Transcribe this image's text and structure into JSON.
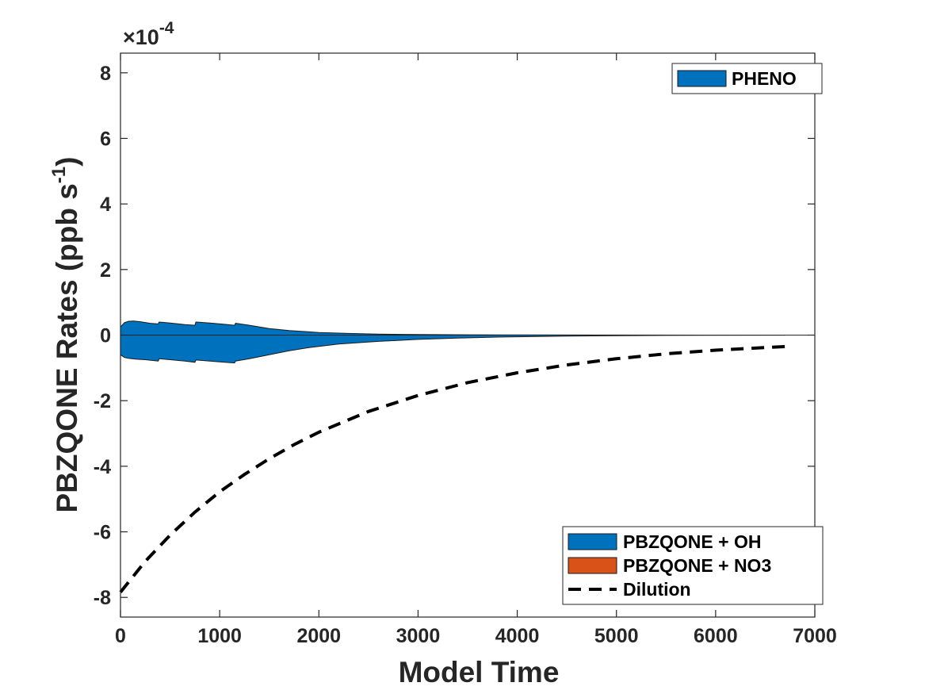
{
  "chart_data": {
    "type": "area",
    "xlabel": "Model Time",
    "ylabel": "PBZQONE Rates (ppb s",
    "ylabel_sup": "-1",
    "ylabel_close": ")",
    "y_multiplier": "×10",
    "y_multiplier_exp": "-4",
    "xlim": [
      0,
      7000
    ],
    "ylim": [
      -0.00086,
      0.00086
    ],
    "xticks": [
      0,
      1000,
      2000,
      3000,
      4000,
      5000,
      6000,
      7000
    ],
    "xtick_labels": [
      "0",
      "1000",
      "2000",
      "3000",
      "4000",
      "5000",
      "6000",
      "7000"
    ],
    "yticks": [
      -0.0008,
      -0.0006,
      -0.0004,
      -0.0002,
      0,
      0.0002,
      0.0004,
      0.0006,
      0.0008
    ],
    "ytick_labels": [
      "-8",
      "-6",
      "-4",
      "-2",
      "0",
      "2",
      "4",
      "6",
      "8"
    ],
    "grid": false,
    "colors": {
      "blue": "#0072BD",
      "orange": "#D95319",
      "black": "#000000"
    },
    "legend_production": {
      "placement": "top-right",
      "entries": [
        {
          "label": "PHENO",
          "color": "#0072BD"
        }
      ]
    },
    "legend_loss": {
      "placement": "bottom-right",
      "entries": [
        {
          "label": "PBZQONE + OH",
          "color": "#0072BD",
          "style": "patch"
        },
        {
          "label": "PBZQONE + NO3",
          "color": "#D95319",
          "style": "patch"
        },
        {
          "label": "Dilution",
          "color": "#000000",
          "style": "dashed"
        }
      ]
    },
    "series": [
      {
        "name": "PHENO",
        "kind": "area-positive",
        "color": "#0072BD",
        "x": [
          0,
          40,
          80,
          130,
          200,
          300,
          380,
          390,
          500,
          650,
          750,
          760,
          900,
          1050,
          1150,
          1160,
          1300,
          1500,
          1700,
          2000,
          2300,
          2600,
          3000,
          3500,
          4000,
          5000,
          6000,
          6700
        ],
        "values": [
          2.5e-05,
          3.8e-05,
          4.2e-05,
          4.3e-05,
          4.1e-05,
          3.6e-05,
          3.4e-05,
          4e-05,
          3.7e-05,
          3.2e-05,
          3e-05,
          4e-05,
          3.7e-05,
          3.3e-05,
          3e-05,
          3.6e-05,
          3e-05,
          2e-05,
          1.4e-05,
          8e-06,
          5e-06,
          3e-06,
          1.8e-06,
          1e-06,
          6e-07,
          2e-07,
          1e-07,
          5e-08
        ]
      },
      {
        "name": "PBZQONE + OH",
        "kind": "area-negative",
        "color": "#0072BD",
        "x": [
          0,
          40,
          80,
          150,
          250,
          380,
          390,
          500,
          650,
          750,
          760,
          900,
          1050,
          1150,
          1160,
          1300,
          1500,
          1700,
          1900,
          2200,
          2600,
          3000,
          3400,
          3800,
          4500,
          5500,
          6700
        ],
        "values": [
          -6e-05,
          -6.8e-05,
          -7.1e-05,
          -7.3e-05,
          -7.5e-05,
          -7.9e-05,
          -7.2e-05,
          -7.5e-05,
          -7.9e-05,
          -8.3e-05,
          -7.6e-05,
          -7.9e-05,
          -8.3e-05,
          -8.5e-05,
          -7.9e-05,
          -7.2e-05,
          -6e-05,
          -4.8e-05,
          -3.8e-05,
          -2.7e-05,
          -1.9e-05,
          -1.3e-05,
          -9e-06,
          -6e-06,
          -3e-06,
          -1e-06,
          -3e-07
        ]
      },
      {
        "name": "PBZQONE + NO3",
        "kind": "area-negative",
        "color": "#D95319",
        "x": [
          0,
          6700
        ],
        "values": [
          0,
          0
        ]
      },
      {
        "name": "Dilution",
        "kind": "line-dashed",
        "color": "#000000",
        "x": [
          0,
          250,
          500,
          750,
          1000,
          1250,
          1500,
          1750,
          2000,
          2500,
          3000,
          3500,
          4000,
          4500,
          5000,
          5500,
          6000,
          6500,
          6700
        ],
        "values": [
          -0.000784,
          -0.00069,
          -0.00061,
          -0.00054,
          -0.000478,
          -0.000425,
          -0.000377,
          -0.000334,
          -0.000296,
          -0.000233,
          -0.000184,
          -0.000145,
          -0.000115,
          -9.1e-05,
          -7.2e-05,
          -5.7e-05,
          -4.6e-05,
          -3.8e-05,
          -3.5e-05
        ]
      }
    ]
  }
}
